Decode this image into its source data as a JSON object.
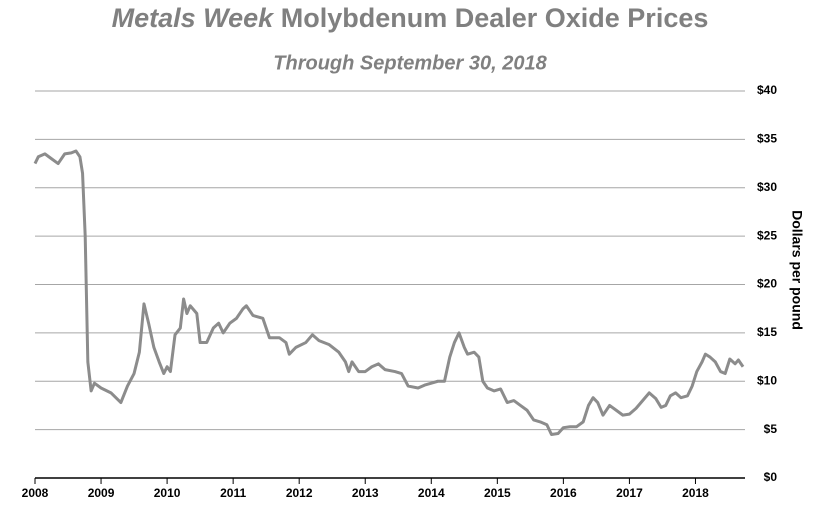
{
  "chart_data": {
    "type": "line",
    "title": {
      "italic": "Metals Week",
      "text": "Molybdenum Dealer Oxide Prices"
    },
    "subtitle": "Through September 30, 2018",
    "y_axis_label": "Dollars per pound",
    "xlim": [
      2008,
      2018.75
    ],
    "xticks": [
      2008,
      2009,
      2010,
      2011,
      2012,
      2013,
      2014,
      2015,
      2016,
      2017,
      2018
    ],
    "ylim": [
      0,
      40
    ],
    "yticks": [
      {
        "value": 0,
        "label": "$0"
      },
      {
        "value": 5,
        "label": "$5"
      },
      {
        "value": 10,
        "label": "$10"
      },
      {
        "value": 15,
        "label": "$15"
      },
      {
        "value": 20,
        "label": "$20"
      },
      {
        "value": 25,
        "label": "$25"
      },
      {
        "value": 30,
        "label": "$30"
      },
      {
        "value": 35,
        "label": "$35"
      },
      {
        "value": 40,
        "label": "$40"
      }
    ],
    "grid": true,
    "series": [
      {
        "color": "#8c8c8c",
        "x": [
          2008.0,
          2008.05,
          2008.15,
          2008.25,
          2008.35,
          2008.45,
          2008.55,
          2008.62,
          2008.68,
          2008.72,
          2008.76,
          2008.8,
          2008.85,
          2008.9,
          2009.0,
          2009.15,
          2009.3,
          2009.4,
          2009.5,
          2009.58,
          2009.65,
          2009.72,
          2009.8,
          2009.88,
          2009.95,
          2010.0,
          2010.05,
          2010.12,
          2010.2,
          2010.25,
          2010.3,
          2010.35,
          2010.45,
          2010.5,
          2010.6,
          2010.7,
          2010.78,
          2010.85,
          2010.95,
          2011.05,
          2011.15,
          2011.2,
          2011.3,
          2011.45,
          2011.55,
          2011.7,
          2011.8,
          2011.85,
          2011.95,
          2012.1,
          2012.2,
          2012.3,
          2012.45,
          2012.6,
          2012.7,
          2012.75,
          2012.8,
          2012.9,
          2013.0,
          2013.1,
          2013.2,
          2013.3,
          2013.45,
          2013.55,
          2013.65,
          2013.8,
          2013.9,
          2014.0,
          2014.1,
          2014.2,
          2014.28,
          2014.35,
          2014.42,
          2014.5,
          2014.55,
          2014.65,
          2014.72,
          2014.78,
          2014.85,
          2014.95,
          2015.05,
          2015.15,
          2015.25,
          2015.35,
          2015.45,
          2015.55,
          2015.65,
          2015.75,
          2015.82,
          2015.92,
          2016.0,
          2016.1,
          2016.2,
          2016.3,
          2016.38,
          2016.45,
          2016.52,
          2016.6,
          2016.7,
          2016.8,
          2016.9,
          2017.0,
          2017.1,
          2017.2,
          2017.3,
          2017.4,
          2017.48,
          2017.55,
          2017.62,
          2017.7,
          2017.78,
          2017.88,
          2017.95,
          2018.02,
          2018.1,
          2018.15,
          2018.22,
          2018.3,
          2018.38,
          2018.45,
          2018.52,
          2018.6,
          2018.65,
          2018.72
        ],
        "values": [
          32.5,
          33.2,
          33.5,
          33.0,
          32.5,
          33.5,
          33.6,
          33.8,
          33.2,
          31.5,
          25,
          12,
          9,
          9.8,
          9.3,
          8.8,
          7.8,
          9.5,
          10.8,
          13,
          18,
          16,
          13.5,
          12,
          10.8,
          11.5,
          11,
          14.8,
          15.5,
          18.5,
          17,
          17.8,
          17,
          14,
          14,
          15.5,
          16,
          15,
          16,
          16.5,
          17.5,
          17.8,
          16.8,
          16.5,
          14.5,
          14.5,
          14,
          12.8,
          13.5,
          14,
          14.8,
          14.2,
          13.8,
          13,
          12,
          11,
          12,
          11,
          11,
          11.5,
          11.8,
          11.2,
          11,
          10.8,
          9.5,
          9.3,
          9.6,
          9.8,
          10,
          10,
          12.5,
          14,
          15,
          13.5,
          12.8,
          13,
          12.5,
          10,
          9.3,
          9,
          9.2,
          7.8,
          8,
          7.5,
          7,
          6,
          5.8,
          5.5,
          4.5,
          4.6,
          5.2,
          5.3,
          5.3,
          5.8,
          7.5,
          8.3,
          7.8,
          6.5,
          7.5,
          7.0,
          6.5,
          6.6,
          7.2,
          8,
          8.8,
          8.2,
          7.3,
          7.5,
          8.5,
          8.8,
          8.3,
          8.5,
          9.5,
          11,
          12,
          12.8,
          12.5,
          12,
          11,
          10.8,
          12.3,
          11.8,
          12.2,
          11.5
        ]
      }
    ]
  }
}
